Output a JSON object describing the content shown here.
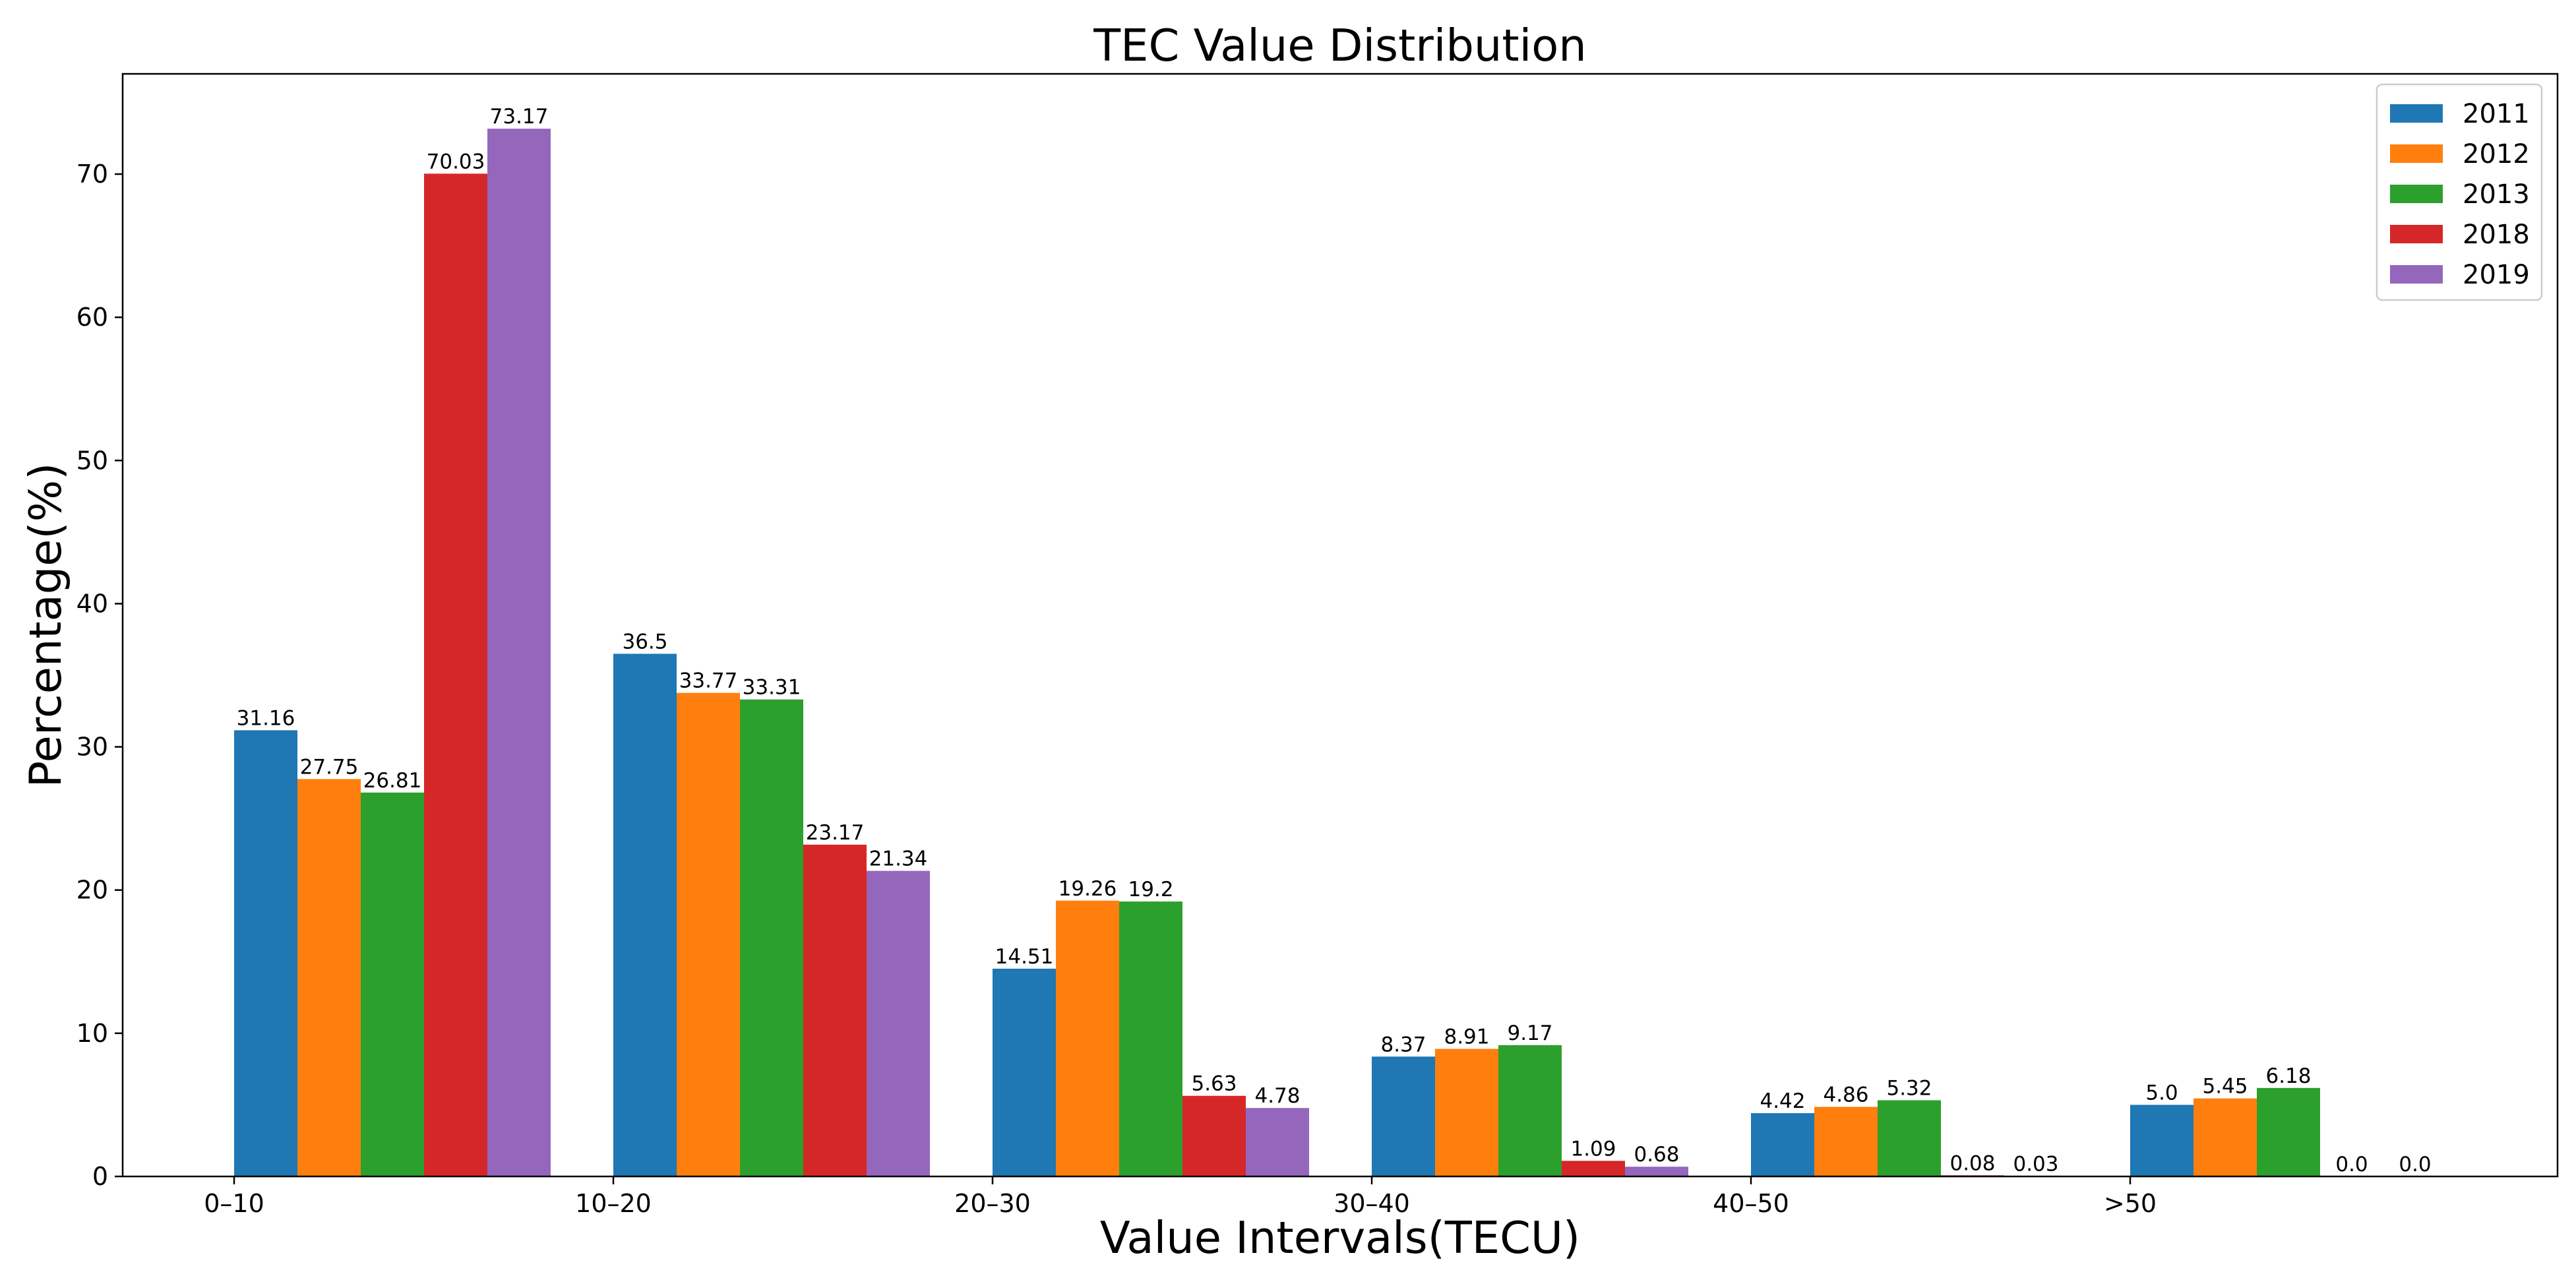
{
  "chart_data": {
    "type": "bar",
    "title": "TEC Value Distribution",
    "xlabel": "Value Intervals(TECU)",
    "ylabel": "Percentage(%)",
    "ylim": [
      0,
      77
    ],
    "yticks": [
      0,
      10,
      20,
      30,
      40,
      50,
      60,
      70
    ],
    "categories": [
      "0–10",
      "10–20",
      "20–30",
      "30–40",
      "40–50",
      ">50"
    ],
    "legend_position": "top-right",
    "grid": false,
    "series": [
      {
        "name": "2011",
        "color": "#1f77b4",
        "values": [
          31.16,
          36.5,
          14.51,
          8.37,
          4.42,
          5.0
        ],
        "labels": [
          "31.16",
          "36.5",
          "14.51",
          "8.37",
          "4.42",
          "5.0"
        ]
      },
      {
        "name": "2012",
        "color": "#ff7f0e",
        "values": [
          27.75,
          33.77,
          19.26,
          8.91,
          4.86,
          5.45
        ],
        "labels": [
          "27.75",
          "33.77",
          "19.26",
          "8.91",
          "4.86",
          "5.45"
        ]
      },
      {
        "name": "2013",
        "color": "#2ca02c",
        "values": [
          26.81,
          33.31,
          19.2,
          9.17,
          5.32,
          6.18
        ],
        "labels": [
          "26.81",
          "33.31",
          "19.2",
          "9.17",
          "5.32",
          "6.18"
        ]
      },
      {
        "name": "2018",
        "color": "#d62728",
        "values": [
          70.03,
          23.17,
          5.63,
          1.09,
          0.08,
          0.0
        ],
        "labels": [
          "70.03",
          "23.17",
          "5.63",
          "1.09",
          "0.08",
          "0.0"
        ]
      },
      {
        "name": "2019",
        "color": "#9467bd",
        "values": [
          73.17,
          21.34,
          4.78,
          0.68,
          0.03,
          0.0
        ],
        "labels": [
          "73.17",
          "21.34",
          "4.78",
          "0.68",
          "0.03",
          "0.0"
        ]
      }
    ]
  }
}
